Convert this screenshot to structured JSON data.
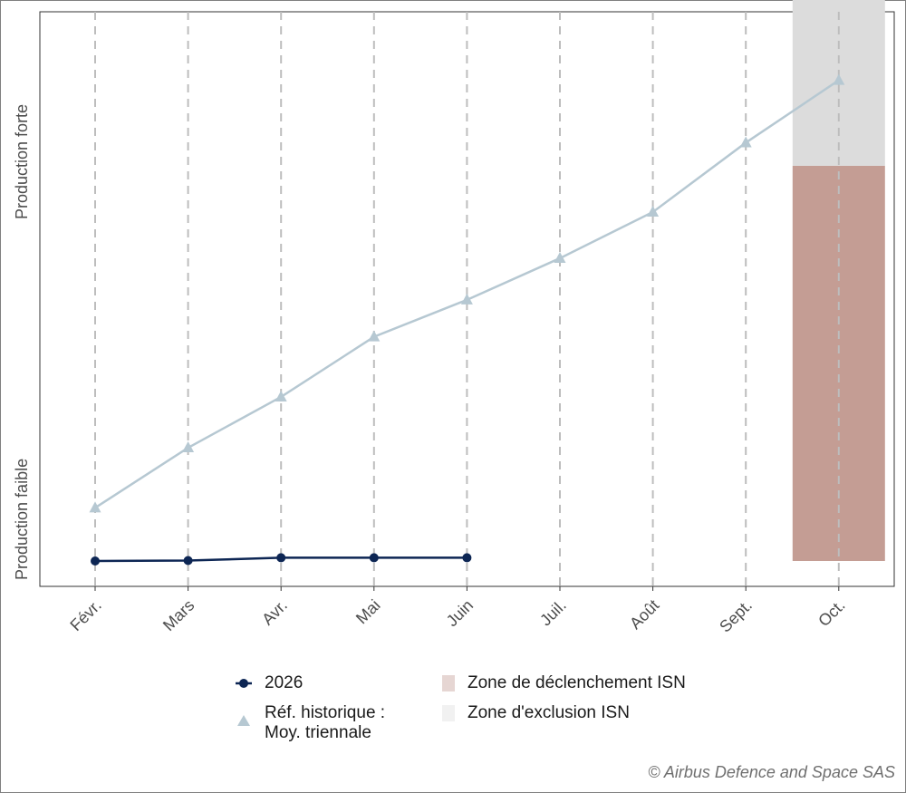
{
  "chart_data": {
    "type": "line",
    "categories": [
      "Févr.",
      "Mars",
      "Avr.",
      "Mai",
      "Juin",
      "Juil.",
      "Août",
      "Sept.",
      "Oct."
    ],
    "y_axis_labels": {
      "low": "Production faible",
      "high": "Production forte"
    },
    "ylim": [
      0,
      100
    ],
    "grid": {
      "vertical_dashed": true
    },
    "series": [
      {
        "name": "2026",
        "marker": "circle",
        "color": "#0d2654",
        "values": [
          0,
          0.1,
          0.7,
          0.7,
          0.7,
          null,
          null,
          null,
          null
        ]
      },
      {
        "name": "Réf. historique : Moy. triennale",
        "marker": "triangle",
        "color": "#b6c8d2",
        "values": [
          11.5,
          24.5,
          35.5,
          48.5,
          56.5,
          65.5,
          75.5,
          90.5,
          104
        ]
      }
    ],
    "zones": [
      {
        "name": "Zone de déclenchement ISN",
        "category": "Oct.",
        "y_range": [
          0,
          85.5
        ],
        "color": "#c49d94"
      },
      {
        "name": "Zone d'exclusion ISN",
        "category": "Oct.",
        "y_range": [
          85.5,
          136
        ],
        "color": "#dcdcdc"
      }
    ]
  },
  "legend": {
    "series_2026": "2026",
    "historical_line1": "Réf. historique :",
    "historical_line2": "Moy. triennale",
    "trigger_zone": "Zone de déclenchement ISN",
    "exclusion_zone": "Zone d'exclusion ISN",
    "legend_colors": {
      "trigger_swatch": "#e6d6d3",
      "exclusion_swatch": "#f1f1f1"
    }
  },
  "copyright": "© Airbus Defence and Space SAS"
}
